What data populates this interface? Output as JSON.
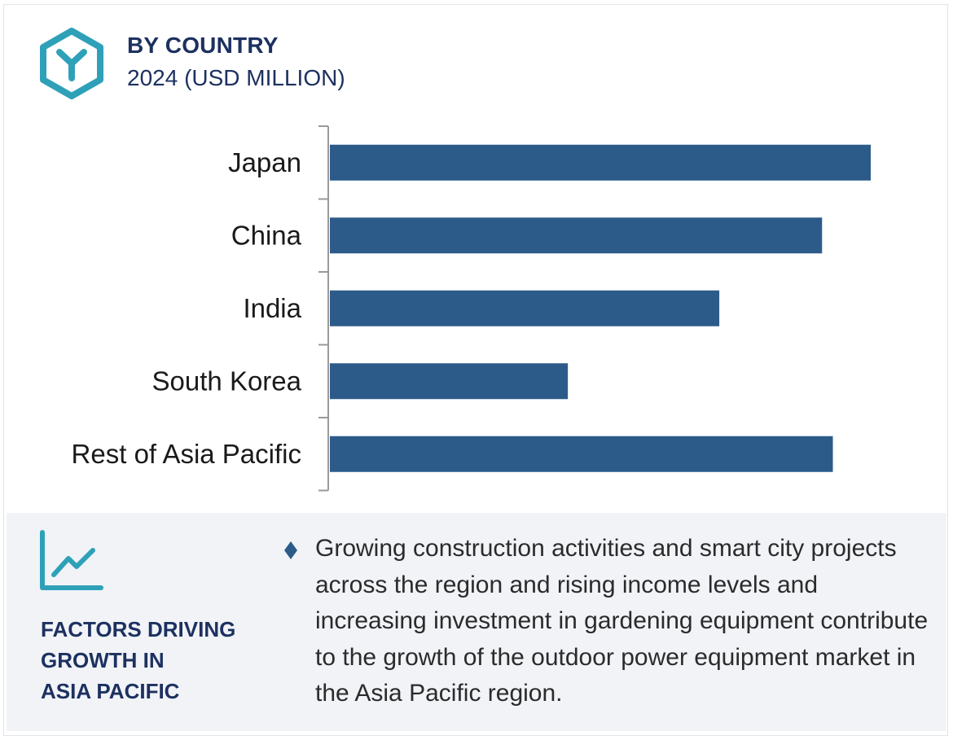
{
  "header": {
    "title": "BY COUNTRY",
    "subtitle": "2024 (USD MILLION)",
    "logo_icon": "hexagon-y-logo-icon",
    "logo_color": "#2ea1b9"
  },
  "chart_data": {
    "type": "bar",
    "orientation": "horizontal",
    "categories": [
      "Japan",
      "China",
      "India",
      "South Korea",
      "Rest of Asia Pacific"
    ],
    "values": [
      100,
      91,
      72,
      44,
      93
    ],
    "xlim": [
      0,
      100
    ],
    "grid": false,
    "value_axis_shown": false,
    "bar_color": "#2c5b8a"
  },
  "factors": {
    "icon": "line-chart-icon",
    "title_lines": [
      "FACTORS DRIVING",
      "GROWTH IN",
      "ASIA PACIFIC"
    ],
    "bullet_icon": "diamond-bullet-icon",
    "text": "Growing construction activities and smart city projects across the region and rising income levels and increasing investment in gardening equipment contribute to the growth of the outdoor power equipment market in the Asia Pacific region."
  }
}
